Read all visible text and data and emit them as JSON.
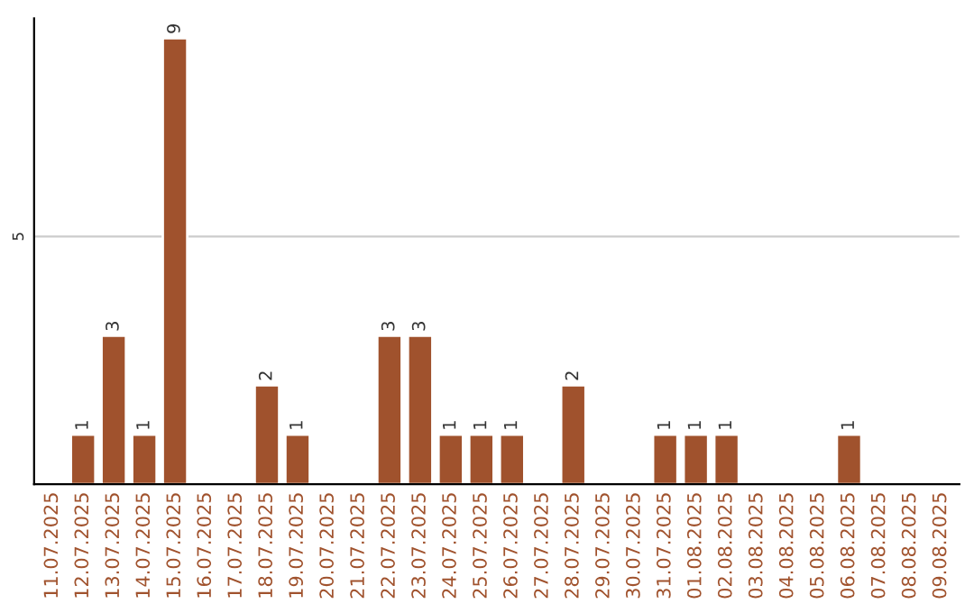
{
  "chart_data": {
    "type": "bar",
    "categories": [
      "11.07.2025",
      "12.07.2025",
      "13.07.2025",
      "14.07.2025",
      "15.07.2025",
      "16.07.2025",
      "17.07.2025",
      "18.07.2025",
      "19.07.2025",
      "20.07.2025",
      "21.07.2025",
      "22.07.2025",
      "23.07.2025",
      "24.07.2025",
      "25.07.2025",
      "26.07.2025",
      "27.07.2025",
      "28.07.2025",
      "29.07.2025",
      "30.07.2025",
      "31.07.2025",
      "01.08.2025",
      "02.08.2025",
      "03.08.2025",
      "04.08.2025",
      "05.08.2025",
      "06.08.2025",
      "07.08.2025",
      "08.08.2025",
      "09.08.2025"
    ],
    "values": [
      null,
      1,
      3,
      1,
      9,
      null,
      null,
      2,
      1,
      null,
      null,
      3,
      3,
      1,
      1,
      1,
      null,
      2,
      null,
      null,
      1,
      1,
      1,
      null,
      null,
      null,
      1,
      null,
      null,
      null
    ],
    "value_labels": [
      null,
      "1",
      "3",
      "1",
      "9",
      null,
      null,
      "2",
      "1",
      null,
      null,
      "3",
      "3",
      "1",
      "1",
      "1",
      null,
      "2",
      null,
      null,
      "1",
      "1",
      "1",
      null,
      null,
      null,
      "1",
      null,
      null,
      null
    ],
    "color": "#a0522d",
    "ylim": [
      0,
      9.4
    ],
    "yticks": [
      5
    ],
    "grid": "y"
  }
}
